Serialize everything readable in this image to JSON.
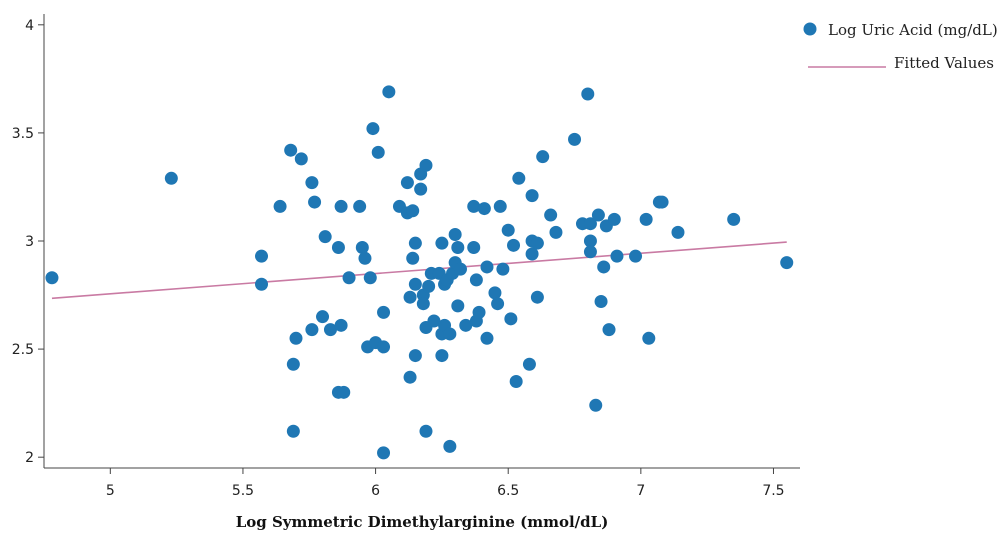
{
  "chart_data": {
    "type": "scatter",
    "xlabel": "Log Symmetric Dimethylarginine (mmol/dL)",
    "ylabel": "",
    "xlim": [
      4.75,
      7.6
    ],
    "ylim": [
      1.95,
      4.05
    ],
    "xticks": [
      "5",
      "5.5",
      "6",
      "6.5",
      "7",
      "7.5"
    ],
    "yticks": [
      "2",
      "2.5",
      "3",
      "3.5",
      "4"
    ],
    "grid": false,
    "legend_position": "top-right",
    "colors": {
      "points": "#1f77b4",
      "line": "#c97aa3"
    },
    "series": [
      {
        "name": "Log Uric Acid (mg/dL)",
        "kind": "scatter",
        "points": [
          [
            4.78,
            2.83
          ],
          [
            5.23,
            3.29
          ],
          [
            5.57,
            2.93
          ],
          [
            5.57,
            2.8
          ],
          [
            5.64,
            3.16
          ],
          [
            5.68,
            3.42
          ],
          [
            5.69,
            2.43
          ],
          [
            5.7,
            2.55
          ],
          [
            5.69,
            2.12
          ],
          [
            5.72,
            3.38
          ],
          [
            5.76,
            3.27
          ],
          [
            5.77,
            3.18
          ],
          [
            5.76,
            2.59
          ],
          [
            5.8,
            2.65
          ],
          [
            5.81,
            3.02
          ],
          [
            5.83,
            2.59
          ],
          [
            5.86,
            2.97
          ],
          [
            5.87,
            3.16
          ],
          [
            5.87,
            2.61
          ],
          [
            5.86,
            2.3
          ],
          [
            5.88,
            2.3
          ],
          [
            5.9,
            2.83
          ],
          [
            5.94,
            3.16
          ],
          [
            5.95,
            2.97
          ],
          [
            5.96,
            2.92
          ],
          [
            5.97,
            2.51
          ],
          [
            5.99,
            3.52
          ],
          [
            5.98,
            2.83
          ],
          [
            6.0,
            2.53
          ],
          [
            6.01,
            3.41
          ],
          [
            6.03,
            2.67
          ],
          [
            6.03,
            2.51
          ],
          [
            6.03,
            2.02
          ],
          [
            6.05,
            3.69
          ],
          [
            6.09,
            3.16
          ],
          [
            6.12,
            3.27
          ],
          [
            6.12,
            3.13
          ],
          [
            6.13,
            2.37
          ],
          [
            6.13,
            2.74
          ],
          [
            6.14,
            3.14
          ],
          [
            6.14,
            2.92
          ],
          [
            6.15,
            2.99
          ],
          [
            6.15,
            2.8
          ],
          [
            6.15,
            2.47
          ],
          [
            6.17,
            3.31
          ],
          [
            6.17,
            3.24
          ],
          [
            6.18,
            2.75
          ],
          [
            6.18,
            2.71
          ],
          [
            6.19,
            2.6
          ],
          [
            6.19,
            2.12
          ],
          [
            6.19,
            3.35
          ],
          [
            6.2,
            2.79
          ],
          [
            6.21,
            2.85
          ],
          [
            6.22,
            2.63
          ],
          [
            6.24,
            2.85
          ],
          [
            6.25,
            2.99
          ],
          [
            6.26,
            2.8
          ],
          [
            6.25,
            2.57
          ],
          [
            6.25,
            2.47
          ],
          [
            6.26,
            2.61
          ],
          [
            6.27,
            2.82
          ],
          [
            6.28,
            2.57
          ],
          [
            6.28,
            2.05
          ],
          [
            6.29,
            2.85
          ],
          [
            6.3,
            3.03
          ],
          [
            6.3,
            2.9
          ],
          [
            6.31,
            2.97
          ],
          [
            6.31,
            2.7
          ],
          [
            6.32,
            2.87
          ],
          [
            6.34,
            2.61
          ],
          [
            6.37,
            3.16
          ],
          [
            6.37,
            2.97
          ],
          [
            6.38,
            2.82
          ],
          [
            6.38,
            2.63
          ],
          [
            6.39,
            2.67
          ],
          [
            6.41,
            3.15
          ],
          [
            6.42,
            2.88
          ],
          [
            6.42,
            2.55
          ],
          [
            6.45,
            2.76
          ],
          [
            6.46,
            2.71
          ],
          [
            6.47,
            3.16
          ],
          [
            6.48,
            2.87
          ],
          [
            6.5,
            3.05
          ],
          [
            6.51,
            2.64
          ],
          [
            6.52,
            2.98
          ],
          [
            6.53,
            2.35
          ],
          [
            6.54,
            3.29
          ],
          [
            6.58,
            2.43
          ],
          [
            6.59,
            3.21
          ],
          [
            6.59,
            3.0
          ],
          [
            6.59,
            2.94
          ],
          [
            6.61,
            2.99
          ],
          [
            6.61,
            2.74
          ],
          [
            6.63,
            3.39
          ],
          [
            6.66,
            3.12
          ],
          [
            6.68,
            3.04
          ],
          [
            6.75,
            3.47
          ],
          [
            6.78,
            3.08
          ],
          [
            6.8,
            3.68
          ],
          [
            6.81,
            3.08
          ],
          [
            6.81,
            3.0
          ],
          [
            6.81,
            2.95
          ],
          [
            6.83,
            2.24
          ],
          [
            6.84,
            3.12
          ],
          [
            6.85,
            2.72
          ],
          [
            6.86,
            2.88
          ],
          [
            6.87,
            3.07
          ],
          [
            6.88,
            2.59
          ],
          [
            6.9,
            3.1
          ],
          [
            6.91,
            2.93
          ],
          [
            6.98,
            2.93
          ],
          [
            7.02,
            3.1
          ],
          [
            7.03,
            2.55
          ],
          [
            7.07,
            3.18
          ],
          [
            7.08,
            3.18
          ],
          [
            7.14,
            3.04
          ],
          [
            7.35,
            3.1
          ],
          [
            7.55,
            2.9
          ]
        ]
      },
      {
        "name": "Fitted Values",
        "kind": "line",
        "x": [
          4.78,
          7.55
        ],
        "y": [
          2.735,
          2.995
        ]
      }
    ]
  }
}
